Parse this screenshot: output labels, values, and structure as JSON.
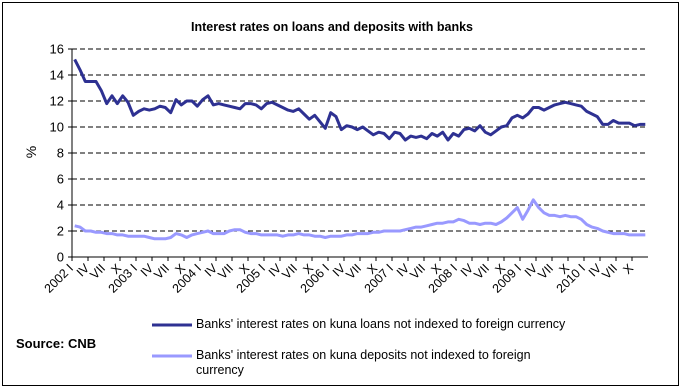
{
  "chart_data": {
    "type": "line",
    "title": "Interest rates on loans and deposits with banks",
    "ylabel": "%",
    "ylim": [
      0,
      16
    ],
    "yticks": [
      0,
      2,
      4,
      6,
      8,
      10,
      12,
      14,
      16
    ],
    "grid": true,
    "legend_placement": "bottom",
    "x_start": "2002-01",
    "x_end": "2010-12",
    "tick_labels": [
      {
        "x": "2002-01",
        "label": "2002 I"
      },
      {
        "x": "2002-04",
        "label": "IV"
      },
      {
        "x": "2002-07",
        "label": "VII"
      },
      {
        "x": "2002-10",
        "label": "X"
      },
      {
        "x": "2003-01",
        "label": "2003 I"
      },
      {
        "x": "2003-04",
        "label": "IV"
      },
      {
        "x": "2003-07",
        "label": "VII"
      },
      {
        "x": "2003-10",
        "label": "X"
      },
      {
        "x": "2004-01",
        "label": "2004 I"
      },
      {
        "x": "2004-04",
        "label": "IV"
      },
      {
        "x": "2004-07",
        "label": "VII"
      },
      {
        "x": "2004-10",
        "label": "X"
      },
      {
        "x": "2005-01",
        "label": "2005 I"
      },
      {
        "x": "2005-04",
        "label": "IV"
      },
      {
        "x": "2005-07",
        "label": "VII"
      },
      {
        "x": "2005-10",
        "label": "X"
      },
      {
        "x": "2006-01",
        "label": "2006 I"
      },
      {
        "x": "2006-04",
        "label": "IV"
      },
      {
        "x": "2006-07",
        "label": "VII"
      },
      {
        "x": "2006-10",
        "label": "X"
      },
      {
        "x": "2007-01",
        "label": "2007 I"
      },
      {
        "x": "2007-04",
        "label": "IV"
      },
      {
        "x": "2007-07",
        "label": "VII"
      },
      {
        "x": "2007-10",
        "label": "X"
      },
      {
        "x": "2008-01",
        "label": "2008 I"
      },
      {
        "x": "2008-04",
        "label": "IV"
      },
      {
        "x": "2008-07",
        "label": "VII"
      },
      {
        "x": "2008-10",
        "label": "X"
      },
      {
        "x": "2009-01",
        "label": "2009 I"
      },
      {
        "x": "2009-04",
        "label": "IV"
      },
      {
        "x": "2009-07",
        "label": "VII"
      },
      {
        "x": "2009-10",
        "label": "X"
      },
      {
        "x": "2010-01",
        "label": "2010 I"
      },
      {
        "x": "2010-04",
        "label": "IV"
      },
      {
        "x": "2010-07",
        "label": "VII"
      },
      {
        "x": "2010-10",
        "label": "X"
      }
    ],
    "series": [
      {
        "name": "Banks' interest rates on kuna loans not indexed to foreign currency",
        "color": "#2e3192",
        "values": [
          15.2,
          14.4,
          13.5,
          13.5,
          13.5,
          12.8,
          11.8,
          12.4,
          11.8,
          12.4,
          11.9,
          10.9,
          11.2,
          11.4,
          11.3,
          11.4,
          11.6,
          11.5,
          11.1,
          12.1,
          11.7,
          12.0,
          12.0,
          11.6,
          12.1,
          12.4,
          11.7,
          11.8,
          11.7,
          11.6,
          11.5,
          11.4,
          11.8,
          11.8,
          11.7,
          11.4,
          11.8,
          11.9,
          11.7,
          11.5,
          11.3,
          11.2,
          11.4,
          11.0,
          10.6,
          10.9,
          10.4,
          9.9,
          11.1,
          10.8,
          9.8,
          10.1,
          10.0,
          9.8,
          10.0,
          9.7,
          9.4,
          9.6,
          9.5,
          9.1,
          9.6,
          9.5,
          9.0,
          9.3,
          9.2,
          9.3,
          9.1,
          9.5,
          9.3,
          9.6,
          9.0,
          9.5,
          9.3,
          9.8,
          9.9,
          9.7,
          10.1,
          9.6,
          9.4,
          9.7,
          10.0,
          10.1,
          10.7,
          10.9,
          10.7,
          11.0,
          11.5,
          11.5,
          11.3,
          11.5,
          11.7,
          11.8,
          11.9,
          11.8,
          11.7,
          11.6,
          11.2,
          11.0,
          10.8,
          10.2,
          10.2,
          10.5,
          10.3,
          10.3,
          10.3,
          10.1,
          10.2,
          10.2
        ]
      },
      {
        "name": "Banks' interest rates on kuna deposits not indexed to foreign currency",
        "color": "#9999ff",
        "values": [
          2.4,
          2.3,
          2.0,
          2.0,
          1.9,
          1.9,
          1.8,
          1.8,
          1.7,
          1.7,
          1.6,
          1.6,
          1.6,
          1.6,
          1.5,
          1.4,
          1.4,
          1.4,
          1.5,
          1.8,
          1.7,
          1.5,
          1.7,
          1.8,
          1.9,
          2.0,
          1.8,
          1.8,
          1.8,
          2.0,
          2.1,
          2.1,
          1.9,
          1.8,
          1.8,
          1.7,
          1.7,
          1.7,
          1.7,
          1.6,
          1.7,
          1.7,
          1.8,
          1.7,
          1.7,
          1.6,
          1.6,
          1.5,
          1.6,
          1.6,
          1.6,
          1.7,
          1.7,
          1.8,
          1.8,
          1.8,
          1.9,
          1.9,
          2.0,
          2.0,
          2.0,
          2.0,
          2.1,
          2.2,
          2.3,
          2.3,
          2.4,
          2.5,
          2.6,
          2.6,
          2.7,
          2.7,
          2.9,
          2.8,
          2.6,
          2.6,
          2.5,
          2.6,
          2.6,
          2.5,
          2.7,
          3.0,
          3.4,
          3.8,
          2.9,
          3.6,
          4.4,
          3.8,
          3.4,
          3.2,
          3.2,
          3.1,
          3.2,
          3.1,
          3.1,
          2.9,
          2.5,
          2.3,
          2.2,
          2.0,
          1.9,
          1.8,
          1.8,
          1.8,
          1.7,
          1.7,
          1.7,
          1.7
        ]
      }
    ]
  },
  "source": "Source: CNB"
}
